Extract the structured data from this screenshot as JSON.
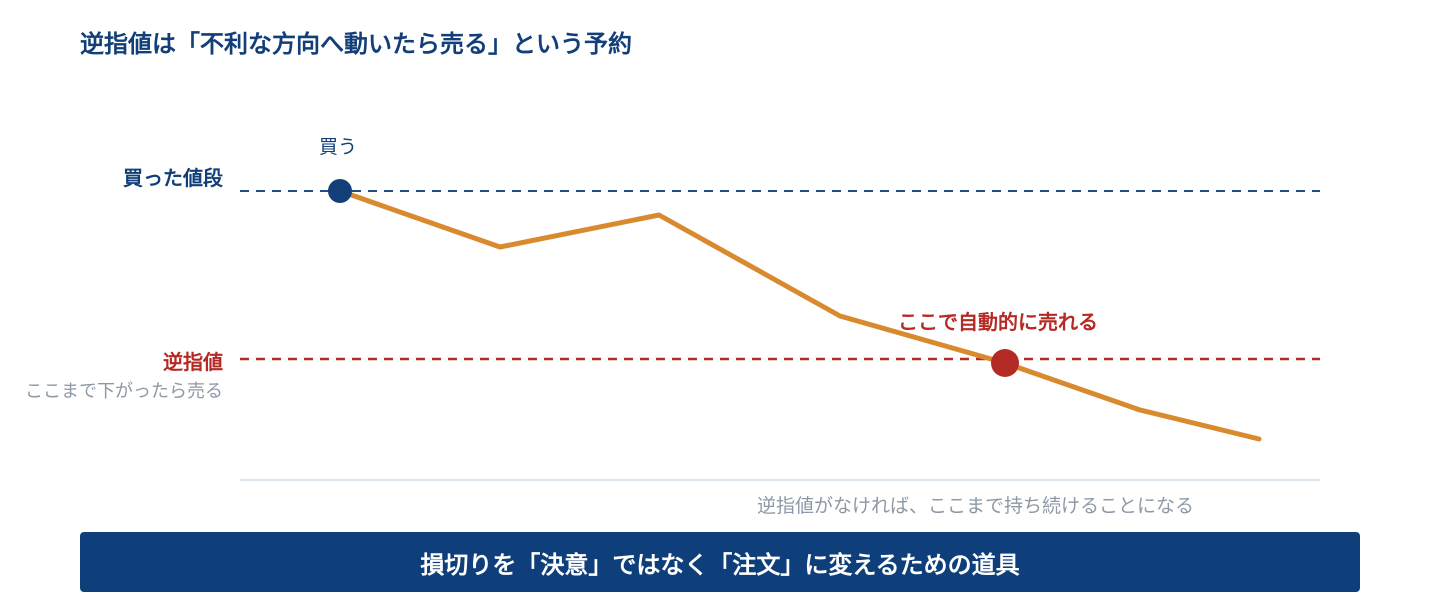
{
  "title": "逆指値は「不利な方向へ動いたら売る」という予約",
  "labels": {
    "buy_price": "買った値段",
    "stop_price": "逆指値",
    "stop_price_sub": "ここまで下がったら売る",
    "buy_point": "買う",
    "auto_sell": "ここで自動的に売れる",
    "no_stop_note": "逆指値がなければ、ここまで持ち続けることになる"
  },
  "banner": {
    "text": "損切りを「決意」ではなく「注文」に変えるための道具"
  },
  "colors": {
    "navy": "#123f78",
    "red": "#b42b25",
    "orange": "#d98a2f",
    "gray": "#8d99a6",
    "banner_bg": "#0f3f7a"
  }
}
